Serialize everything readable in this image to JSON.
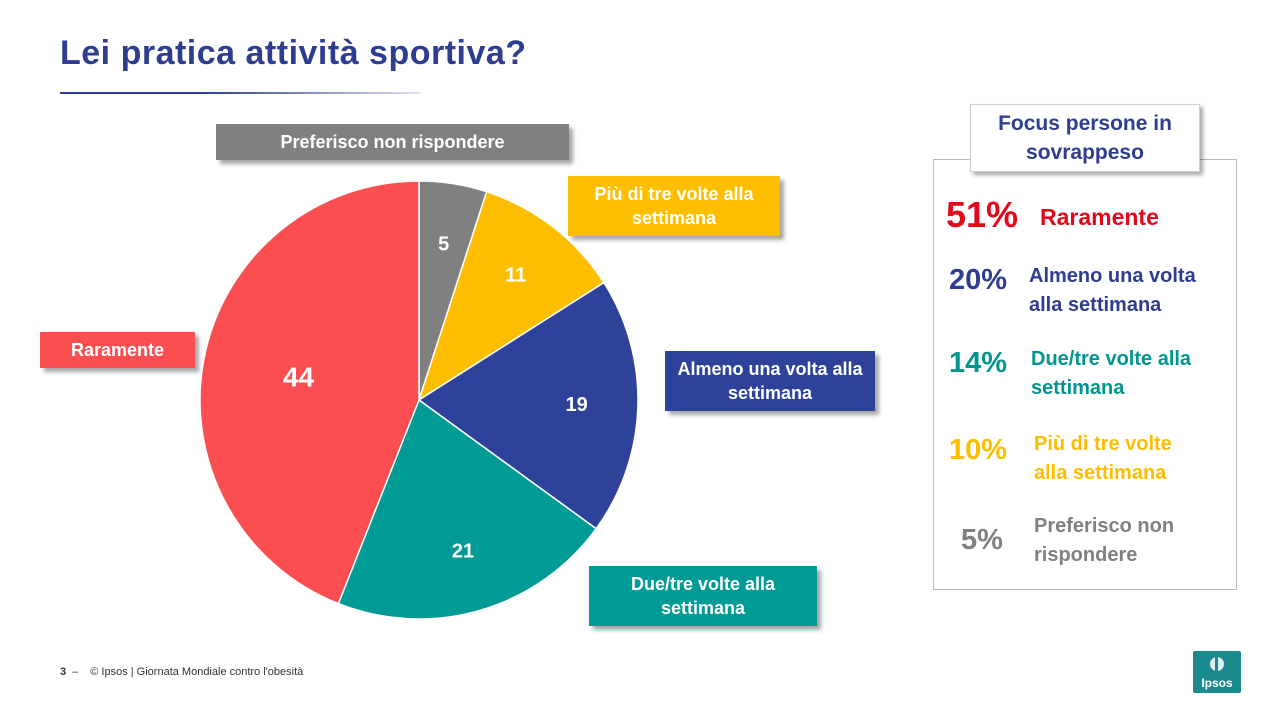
{
  "title": "Lei pratica attività sportiva?",
  "chart_data": {
    "type": "pie",
    "title": "Lei pratica attività sportiva?",
    "unit": "%",
    "slices": [
      {
        "label": "Preferisco non rispondere",
        "value": 5,
        "color": "#808080"
      },
      {
        "label": "Più di tre volte alla settimana",
        "value": 11,
        "color": "#fdbe00"
      },
      {
        "label": "Almeno una volta alla settimana",
        "value": 19,
        "color": "#2e4299"
      },
      {
        "label": "Due/tre volte alla settimana",
        "value": 21,
        "color": "#009b94"
      },
      {
        "label": "Raramente",
        "value": 44,
        "color": "#fb4e50"
      }
    ]
  },
  "focus": {
    "title": "Focus persone in sovrappeso",
    "items": [
      {
        "pct": "51%",
        "label": "Raramente",
        "color": "#e3081b"
      },
      {
        "pct": "20%",
        "label": "Almeno una volta alla settimana",
        "color": "#2e3d8f"
      },
      {
        "pct": "14%",
        "label": "Due/tre volte alla settimana",
        "color": "#00968f"
      },
      {
        "pct": "10%",
        "label": "Più di tre volte alla settimana",
        "color": "#fdbe00"
      },
      {
        "pct": "5%",
        "label": "Preferisco non rispondere",
        "color": "#808080"
      }
    ]
  },
  "footer": {
    "page": "3",
    "dash": "–",
    "text": "© Ipsos | Giornata Mondiale contro l'obesità"
  },
  "logo": {
    "text": "Ipsos"
  }
}
